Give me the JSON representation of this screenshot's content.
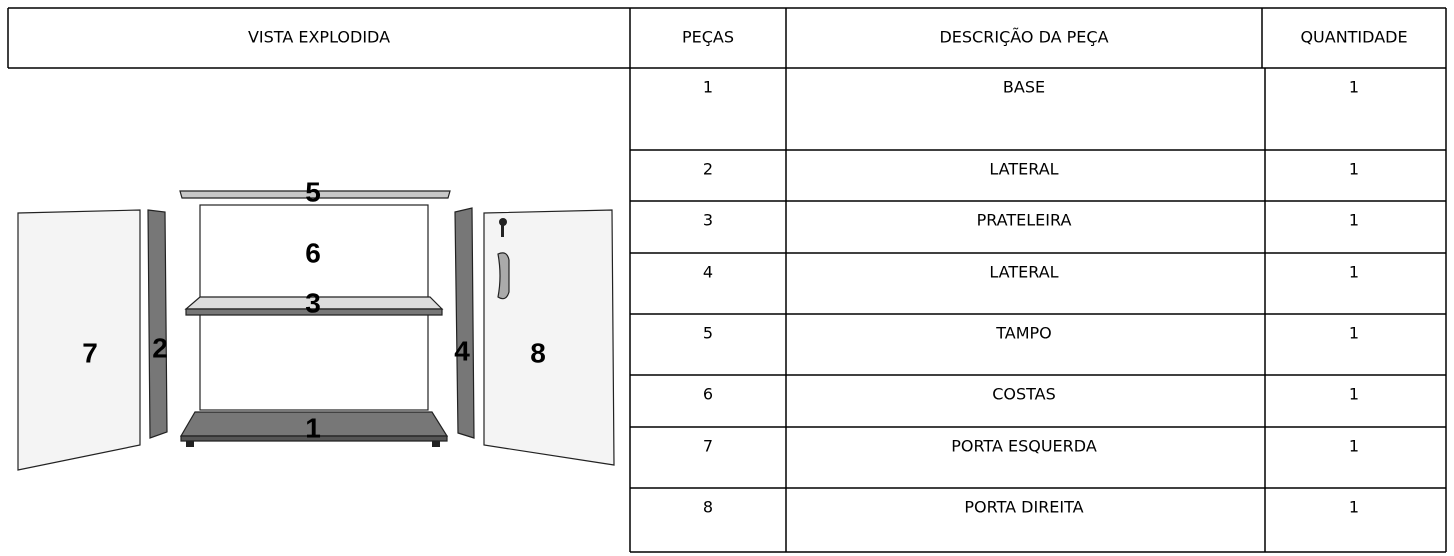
{
  "header": {
    "view": "VISTA EXPLODIDA",
    "part": "PEÇAS",
    "description": "DESCRIÇÃO DA PEÇA",
    "quantity": "QUANTIDADE"
  },
  "table": {
    "rows": [
      [
        "1",
        "BASE",
        "1"
      ],
      [
        "2",
        "LATERAL",
        "1"
      ],
      [
        "3",
        "PRATELEIRA",
        "1"
      ],
      [
        "4",
        "LATERAL",
        "1"
      ],
      [
        "5",
        "TAMPO",
        "1"
      ],
      [
        "6",
        "COSTAS",
        "1"
      ],
      [
        "7",
        "PORTA ESQUERDA",
        "1"
      ],
      [
        "8",
        "PORTA DIREITA",
        "1"
      ]
    ]
  },
  "diagram": {
    "labels": [
      "7",
      "2",
      "5",
      "6",
      "3",
      "4",
      "8",
      "1"
    ]
  }
}
